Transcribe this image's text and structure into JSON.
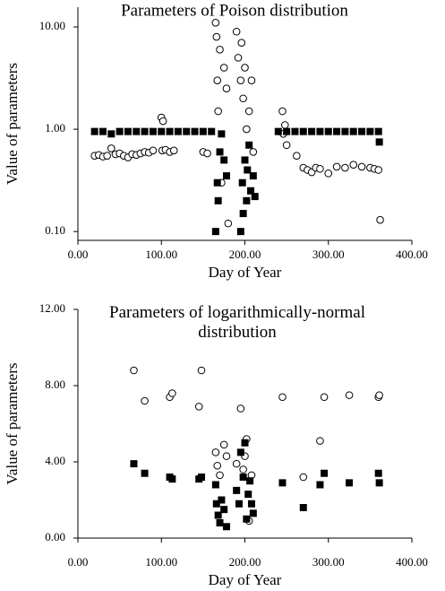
{
  "chart_data": [
    {
      "type": "scatter",
      "title": "Parameters of Poison distribution",
      "xlabel": "Day of Year",
      "ylabel": "Value of parameters",
      "xlim": [
        0,
        400
      ],
      "xticks": [
        {
          "value": 0,
          "label": "0.00"
        },
        {
          "value": 100,
          "label": "100.00"
        },
        {
          "value": 200,
          "label": "200.00"
        },
        {
          "value": 300,
          "label": "300.00"
        },
        {
          "value": 400,
          "label": "400.00"
        }
      ],
      "ylim": [
        0.082,
        15.6
      ],
      "log_scale": true,
      "yticks": [
        {
          "value": 0.1,
          "label": "0.10"
        },
        {
          "value": 1,
          "label": "1.00"
        },
        {
          "value": 10,
          "label": "10.00"
        }
      ],
      "series": [
        {
          "marker": "circle",
          "color": "#000000",
          "x": [
            20,
            25,
            30,
            35,
            40,
            45,
            50,
            55,
            60,
            65,
            70,
            75,
            80,
            85,
            90,
            100,
            101,
            102,
            105,
            110,
            115,
            150,
            155,
            165,
            166,
            167,
            168,
            170,
            172,
            175,
            178,
            180,
            190,
            192,
            195,
            196,
            198,
            200,
            202,
            205,
            208,
            210,
            245,
            246,
            248,
            250,
            262,
            270,
            275,
            280,
            285,
            290,
            300,
            310,
            320,
            330,
            340,
            350,
            355,
            360,
            362
          ],
          "values": [
            0.55,
            0.56,
            0.54,
            0.55,
            0.65,
            0.57,
            0.58,
            0.55,
            0.53,
            0.57,
            0.56,
            0.58,
            0.6,
            0.59,
            0.62,
            1.3,
            0.62,
            1.2,
            0.63,
            0.6,
            0.62,
            0.6,
            0.58,
            11,
            8,
            3,
            1.5,
            6,
            0.3,
            4,
            2.5,
            0.12,
            9,
            5,
            3,
            7,
            2,
            4,
            1,
            1.5,
            3,
            0.6,
            1.5,
            0.9,
            1.1,
            0.7,
            0.55,
            0.42,
            0.4,
            0.38,
            0.42,
            0.41,
            0.37,
            0.43,
            0.42,
            0.45,
            0.43,
            0.42,
            0.41,
            0.4,
            0.13
          ]
        },
        {
          "marker": "square",
          "color": "#000000",
          "x": [
            20,
            30,
            40,
            50,
            60,
            70,
            80,
            90,
            100,
            110,
            120,
            130,
            140,
            150,
            160,
            165,
            167,
            168,
            170,
            172,
            175,
            178,
            195,
            197,
            198,
            200,
            202,
            203,
            205,
            207,
            210,
            212,
            240,
            250,
            260,
            270,
            280,
            290,
            300,
            310,
            320,
            330,
            340,
            350,
            360,
            361
          ],
          "values": [
            0.95,
            0.95,
            0.9,
            0.95,
            0.95,
            0.95,
            0.95,
            0.95,
            0.95,
            0.95,
            0.95,
            0.95,
            0.95,
            0.95,
            0.95,
            0.1,
            0.3,
            0.2,
            0.6,
            0.9,
            0.5,
            0.35,
            0.1,
            0.3,
            0.15,
            0.5,
            0.2,
            0.4,
            0.7,
            0.25,
            0.35,
            0.22,
            0.95,
            0.95,
            0.95,
            0.95,
            0.95,
            0.95,
            0.95,
            0.95,
            0.95,
            0.95,
            0.95,
            0.95,
            0.95,
            0.75
          ]
        }
      ]
    },
    {
      "type": "scatter",
      "title": "Parameters of logarithmically-normal distribution",
      "xlabel": "Day of Year",
      "ylabel": "Value of parameters",
      "xlim": [
        0,
        400
      ],
      "xticks": [
        {
          "value": 0,
          "label": "0.00"
        },
        {
          "value": 100,
          "label": "100.00"
        },
        {
          "value": 200,
          "label": "200.00"
        },
        {
          "value": 300,
          "label": "300.00"
        },
        {
          "value": 400,
          "label": "400.00"
        }
      ],
      "ylim": [
        0,
        12
      ],
      "log_scale": false,
      "yticks": [
        {
          "value": 0,
          "label": "0.00"
        },
        {
          "value": 4,
          "label": "4.00"
        },
        {
          "value": 8,
          "label": "8.00"
        },
        {
          "value": 12,
          "label": "12.00"
        }
      ],
      "series": [
        {
          "marker": "circle",
          "color": "#000000",
          "x": [
            67,
            80,
            110,
            113,
            145,
            148,
            165,
            167,
            170,
            175,
            178,
            190,
            195,
            198,
            200,
            202,
            205,
            208,
            245,
            270,
            290,
            295,
            325,
            360,
            361
          ],
          "values": [
            8.8,
            7.2,
            7.4,
            7.6,
            6.9,
            8.8,
            4.5,
            3.8,
            3.3,
            4.9,
            4.3,
            3.9,
            6.8,
            3.6,
            4.3,
            5.2,
            0.9,
            3.3,
            7.4,
            3.2,
            5.1,
            7.4,
            7.5,
            7.4,
            7.5
          ]
        },
        {
          "marker": "square",
          "color": "#000000",
          "x": [
            67,
            80,
            110,
            113,
            145,
            148,
            165,
            166,
            168,
            170,
            172,
            175,
            178,
            190,
            193,
            195,
            198,
            200,
            202,
            204,
            206,
            208,
            210,
            245,
            270,
            290,
            295,
            325,
            360,
            361
          ],
          "values": [
            3.9,
            3.4,
            3.2,
            3.1,
            3.1,
            3.2,
            2.8,
            1.8,
            1.2,
            0.8,
            2.0,
            1.5,
            0.6,
            2.5,
            1.8,
            4.5,
            3.2,
            5.0,
            1.0,
            2.3,
            3.0,
            1.8,
            1.3,
            2.9,
            1.6,
            2.8,
            3.4,
            2.9,
            3.4,
            2.9
          ]
        }
      ]
    }
  ]
}
